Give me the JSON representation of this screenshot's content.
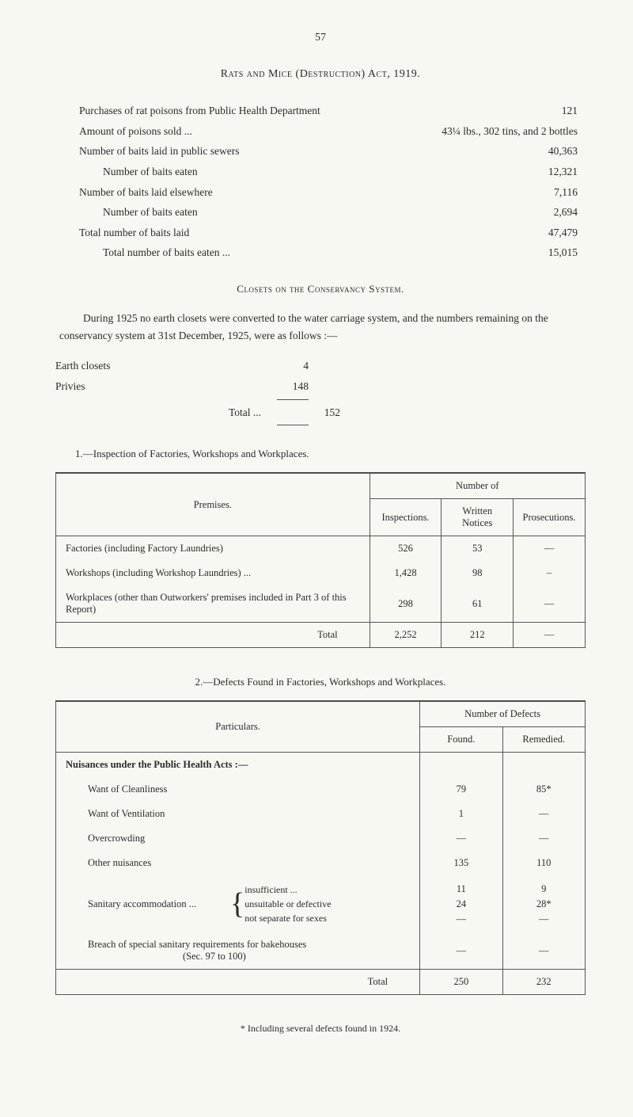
{
  "page_number": "57",
  "title_top": "Rats and Mice (Destruction) Act, 1919.",
  "purchases": [
    {
      "label": "Purchases of rat poisons from Public Health Department",
      "value": "121",
      "indent": 0
    },
    {
      "label": "Amount of poisons sold ...",
      "value": "43¼ lbs., 302 tins, and 2 bottles",
      "indent": 0,
      "wide": true
    },
    {
      "label": "Number of baits laid in public sewers",
      "value": "40,363",
      "indent": 0
    },
    {
      "label": "Number of baits eaten",
      "value": "12,321",
      "indent": 1
    },
    {
      "label": "Number of baits laid elsewhere",
      "value": "7,116",
      "indent": 0
    },
    {
      "label": "Number of baits eaten",
      "value": "2,694",
      "indent": 1
    },
    {
      "label": "Total number of baits laid",
      "value": "47,479",
      "indent": 0
    },
    {
      "label": "Total number of baits eaten ...",
      "value": "15,015",
      "indent": 1
    }
  ],
  "closets_heading": "Closets on the Conservancy System.",
  "closets_para": "During 1925 no earth closets were converted to the water carriage system, and the numbers remaining on the conservancy system at 31st December, 1925, were as follows :—",
  "closets_rows": [
    {
      "label": "Earth closets",
      "value": "4"
    },
    {
      "label": "Privies",
      "value": "148"
    }
  ],
  "closets_total_label": "Total ...",
  "closets_total_value": "152",
  "section1_heading": "1.—Inspection of Factories, Workshops and Workplaces.",
  "table1": {
    "premises_header": "Premises.",
    "number_of_header": "Number of",
    "cols": [
      "Inspections.",
      "Written Notices",
      "Prosecutions."
    ],
    "rows": [
      {
        "desc": "Factories (including Factory Laundries)",
        "vals": [
          "526",
          "53",
          "—"
        ]
      },
      {
        "desc": "Workshops (including Workshop Laundries) ...",
        "vals": [
          "1,428",
          "98",
          "–"
        ]
      },
      {
        "desc": "Workplaces (other than Outworkers' premises included in Part 3 of this Report)",
        "vals": [
          "298",
          "61",
          "—"
        ]
      }
    ],
    "total_label": "Total",
    "total_vals": [
      "2,252",
      "212",
      "—"
    ]
  },
  "section2_heading": "2.—Defects Found in Factories, Workshops and Workplaces.",
  "table2": {
    "particulars_header": "Particulars.",
    "defects_header": "Number of Defects",
    "cols": [
      "Found.",
      "Remedied."
    ],
    "nuisances_header": "Nuisances under the Public Health Acts :—",
    "rows": [
      {
        "desc": "Want of Cleanliness",
        "vals": [
          "79",
          "85*"
        ]
      },
      {
        "desc": "Want of Ventilation",
        "vals": [
          "1",
          "—"
        ]
      },
      {
        "desc": "Overcrowding",
        "vals": [
          "—",
          "—"
        ]
      },
      {
        "desc": "Other nuisances",
        "vals": [
          "135",
          "110"
        ]
      }
    ],
    "sanitary_label": "Sanitary accommodation",
    "brace_items": [
      {
        "label": "insufficient ...",
        "vals": [
          "11",
          "9"
        ]
      },
      {
        "label": "unsuitable or defective",
        "vals": [
          "24",
          "28*"
        ]
      },
      {
        "label": "not separate for sexes",
        "vals": [
          "—",
          "—"
        ]
      }
    ],
    "breach_label": "Breach of special sanitary requirements for bakehouses",
    "breach_sub": "(Sec. 97 to 100)",
    "breach_vals": [
      "—",
      "—"
    ],
    "total_label": "Total",
    "total_vals": [
      "250",
      "232"
    ]
  },
  "footnote": "* Including several defects found in 1924."
}
